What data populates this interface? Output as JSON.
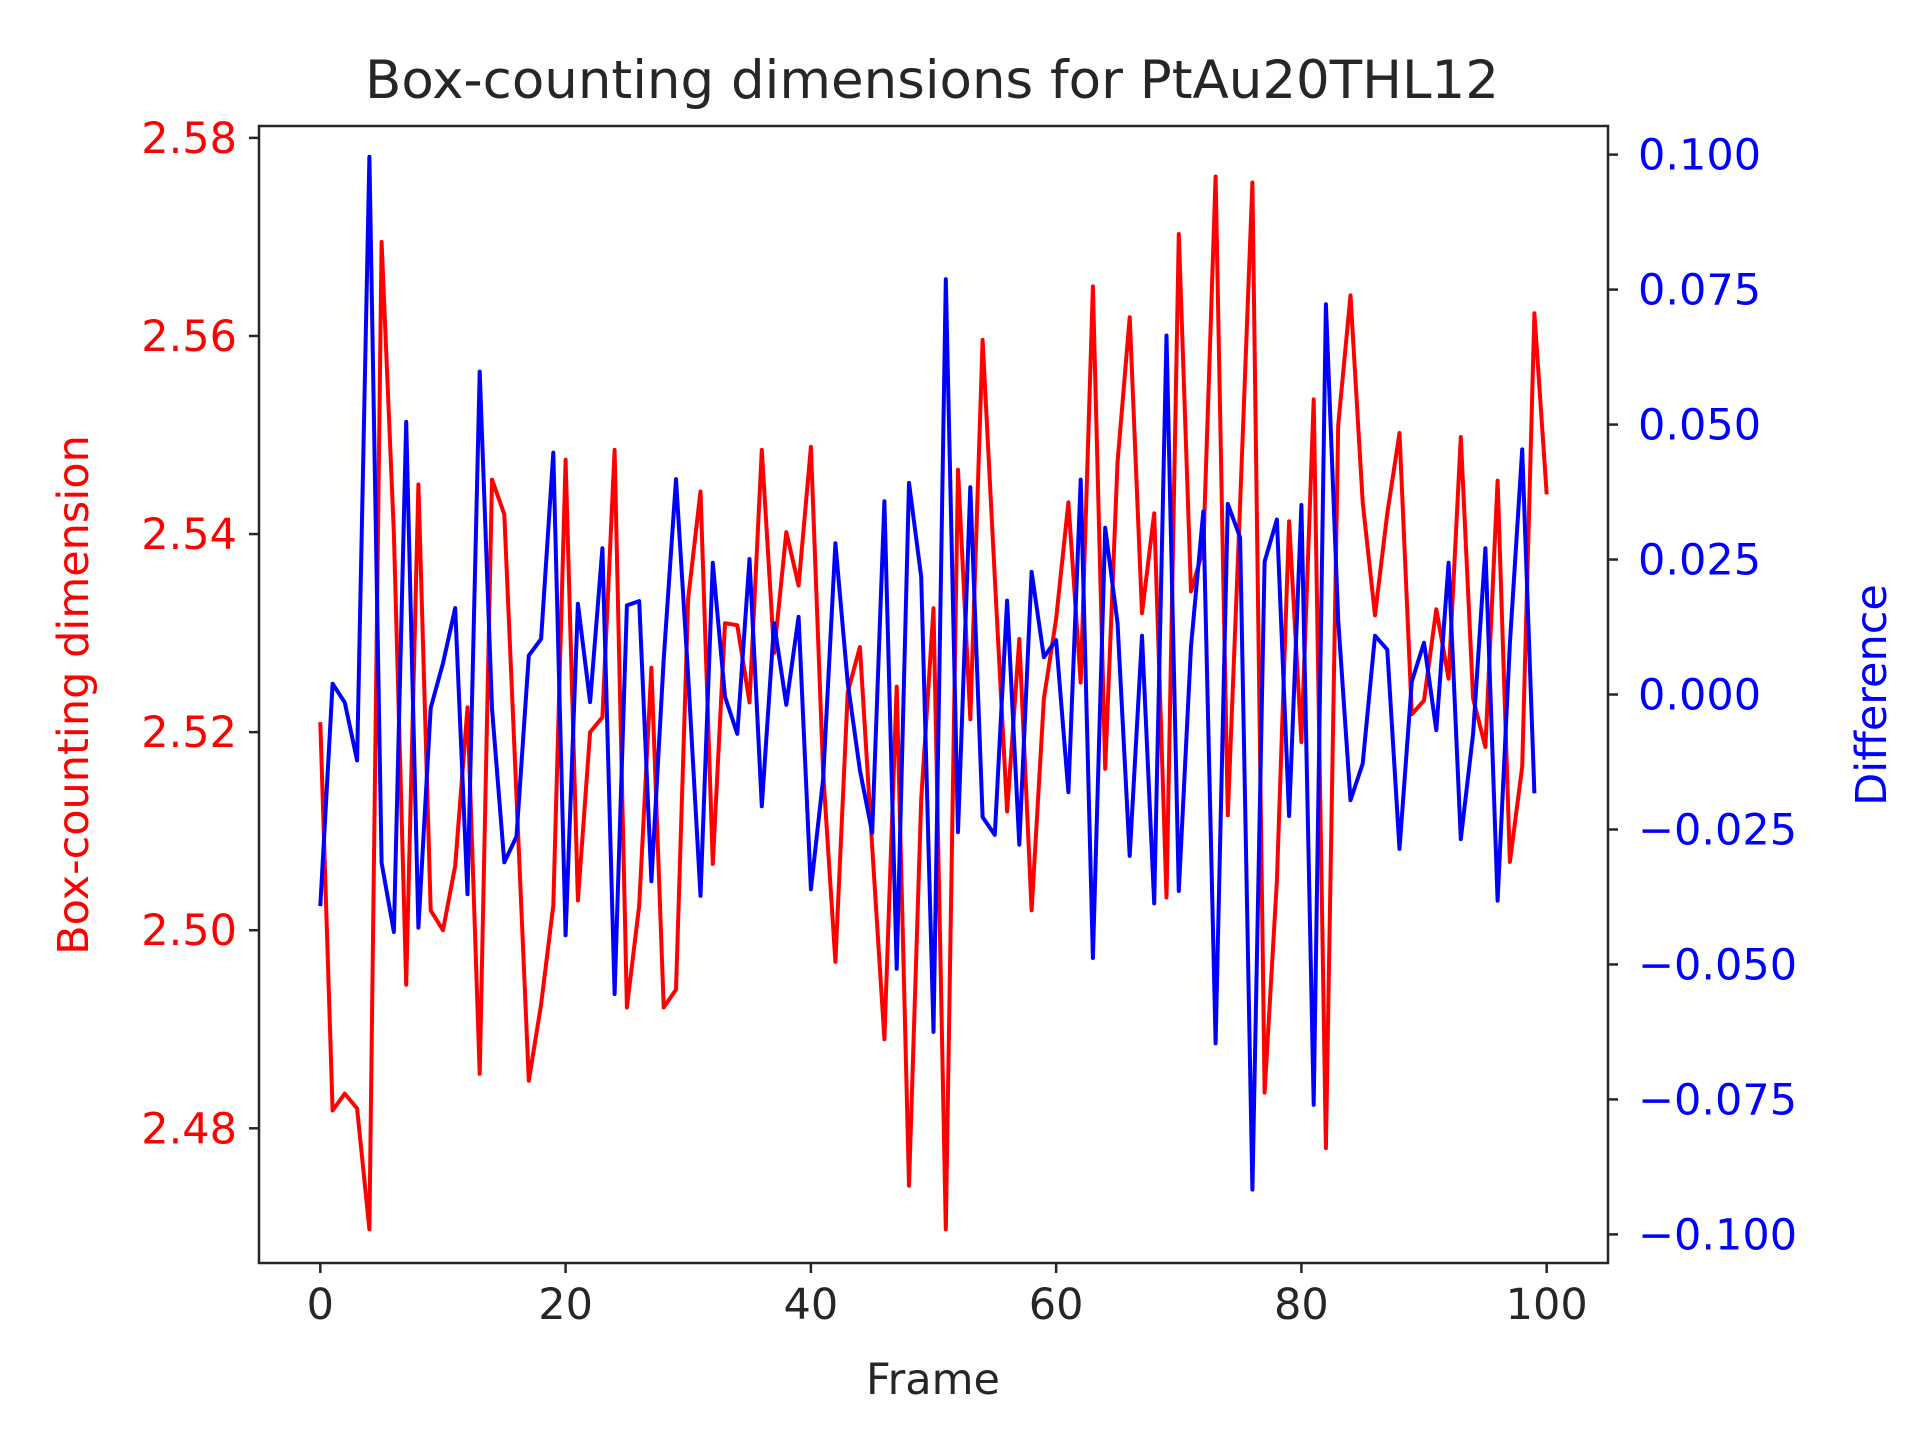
{
  "chart_data": {
    "type": "line",
    "title": "Box-counting dimensions for PtAu20THL12",
    "xlabel": "Frame",
    "ylabel_left": "Box-counting dimension",
    "ylabel_right": "Difference",
    "xlim": [
      -5,
      105
    ],
    "ylim_left": [
      2.4664,
      2.5812
    ],
    "ylim_right": [
      -0.1053,
      0.1053
    ],
    "x_ticks": [
      "0",
      "20",
      "40",
      "60",
      "80",
      "100"
    ],
    "y_left_ticks": [
      "2.48",
      "2.50",
      "2.52",
      "2.54",
      "2.56",
      "2.58"
    ],
    "y_right_ticks": [
      "−0.100",
      "−0.075",
      "−0.050",
      "−0.025",
      "0.000",
      "0.025",
      "0.050",
      "0.075",
      "0.100"
    ],
    "grid": false,
    "colors": {
      "left_axis": "#ff0000",
      "right_axis": "#0000ff",
      "text": "#262626",
      "axes": "#262626"
    },
    "series": [
      {
        "axis": "left",
        "color": "#ff0000",
        "x": [
          0,
          1,
          2,
          3,
          4,
          5,
          6,
          7,
          8,
          9,
          10,
          11,
          12,
          13,
          14,
          15,
          16,
          17,
          18,
          19,
          20,
          21,
          22,
          23,
          24,
          25,
          26,
          27,
          28,
          29,
          30,
          31,
          32,
          33,
          34,
          35,
          36,
          37,
          38,
          39,
          40,
          41,
          42,
          43,
          44,
          45,
          46,
          47,
          48,
          49,
          50,
          51,
          52,
          53,
          54,
          55,
          56,
          57,
          58,
          59,
          60,
          61,
          62,
          63,
          64,
          65,
          66,
          67,
          68,
          69,
          70,
          71,
          72,
          73,
          74,
          75,
          76,
          77,
          78,
          79,
          80,
          81,
          82,
          83,
          84,
          85,
          86,
          87,
          88,
          89,
          90,
          91,
          92,
          93,
          94,
          95,
          96,
          97,
          98,
          99,
          100
        ],
        "values": [
          2.521,
          2.4818,
          2.4835,
          2.482,
          2.4698,
          2.5695,
          2.54,
          2.4945,
          2.545,
          2.502,
          2.5,
          2.5065,
          2.5225,
          2.4855,
          2.5455,
          2.542,
          2.5135,
          2.4848,
          2.4925,
          2.5025,
          2.5475,
          2.503,
          2.52,
          2.5215,
          2.5485,
          2.4922,
          2.5025,
          2.5265,
          2.4922,
          2.494,
          2.5335,
          2.5443,
          2.5067,
          2.531,
          2.5308,
          2.523,
          2.5485,
          2.528,
          2.5402,
          2.5348,
          2.5488,
          2.516,
          2.4968,
          2.524,
          2.5286,
          2.5084,
          2.489,
          2.5246,
          2.4742,
          2.5132,
          2.5325,
          2.4698,
          2.5465,
          2.5213,
          2.5596,
          2.5356,
          2.512,
          2.5294,
          2.502,
          2.5234,
          2.5314,
          2.5432,
          2.525,
          2.565,
          2.5163,
          2.5472,
          2.5619,
          2.532,
          2.5421,
          2.5033,
          2.5703,
          2.5342,
          2.5385,
          2.5761,
          2.5116,
          2.543,
          2.5755,
          2.4836,
          2.505,
          2.5413,
          2.519,
          2.5536,
          2.478,
          2.551,
          2.5641,
          2.5432,
          2.5318,
          2.5421,
          2.5502,
          2.5218,
          2.5232,
          2.5324,
          2.5254,
          2.5498,
          2.5234,
          2.5185,
          2.5454,
          2.5069,
          2.5165,
          2.5623,
          2.544
        ]
      },
      {
        "axis": "right",
        "color": "#0000ff",
        "x": [
          0,
          1,
          2,
          3,
          4,
          5,
          6,
          7,
          8,
          9,
          10,
          11,
          12,
          13,
          14,
          15,
          16,
          17,
          18,
          19,
          20,
          21,
          22,
          23,
          24,
          25,
          26,
          27,
          28,
          29,
          30,
          31,
          32,
          33,
          34,
          35,
          36,
          37,
          38,
          39,
          40,
          41,
          42,
          43,
          44,
          45,
          46,
          47,
          48,
          49,
          50,
          51,
          52,
          53,
          54,
          55,
          56,
          57,
          58,
          59,
          60,
          61,
          62,
          63,
          64,
          65,
          66,
          67,
          68,
          69,
          70,
          71,
          72,
          73,
          74,
          75,
          76,
          77,
          78,
          79,
          80,
          81,
          82,
          83,
          84,
          85,
          86,
          87,
          88,
          89,
          90,
          91,
          92,
          93,
          94,
          95,
          96,
          97,
          98,
          99
        ],
        "values": [
          -0.0392,
          0.002,
          -0.0015,
          -0.0122,
          0.0996,
          -0.0312,
          -0.044,
          0.0505,
          -0.0432,
          -0.0025,
          0.0058,
          0.016,
          -0.037,
          0.0598,
          -0.0026,
          -0.0311,
          -0.0263,
          0.0072,
          0.0103,
          0.0448,
          -0.0446,
          0.0168,
          -0.0014,
          0.0271,
          -0.0555,
          0.0165,
          0.0173,
          -0.0346,
          0.0065,
          0.0399,
          0.0033,
          -0.0373,
          0.0244,
          -0.0004,
          -0.0073,
          0.0251,
          -0.0207,
          0.0132,
          -0.0019,
          0.0144,
          -0.0361,
          -0.0157,
          0.028,
          0.0022,
          -0.014,
          -0.0256,
          0.0358,
          -0.0508,
          0.0392,
          0.0218,
          -0.0625,
          0.0769,
          -0.0255,
          0.0384,
          -0.0227,
          -0.026,
          0.0174,
          -0.0278,
          0.0227,
          0.0069,
          0.0101,
          -0.0181,
          0.0398,
          -0.0488,
          0.0309,
          0.0133,
          -0.0299,
          0.0109,
          -0.0387,
          0.0665,
          -0.0364,
          0.0089,
          0.0339,
          -0.0646,
          0.0353,
          0.0291,
          -0.0917,
          0.0246,
          0.0324,
          -0.0225,
          0.0351,
          -0.076,
          0.0723,
          0.0138,
          -0.0196,
          -0.0128,
          0.0109,
          0.0083,
          -0.0286,
          0.0024,
          0.0096,
          -0.0066,
          0.0244,
          -0.0268,
          -0.0073,
          0.0271,
          -0.0382,
          0.0095,
          0.0454,
          -0.0183
        ]
      }
    ]
  }
}
